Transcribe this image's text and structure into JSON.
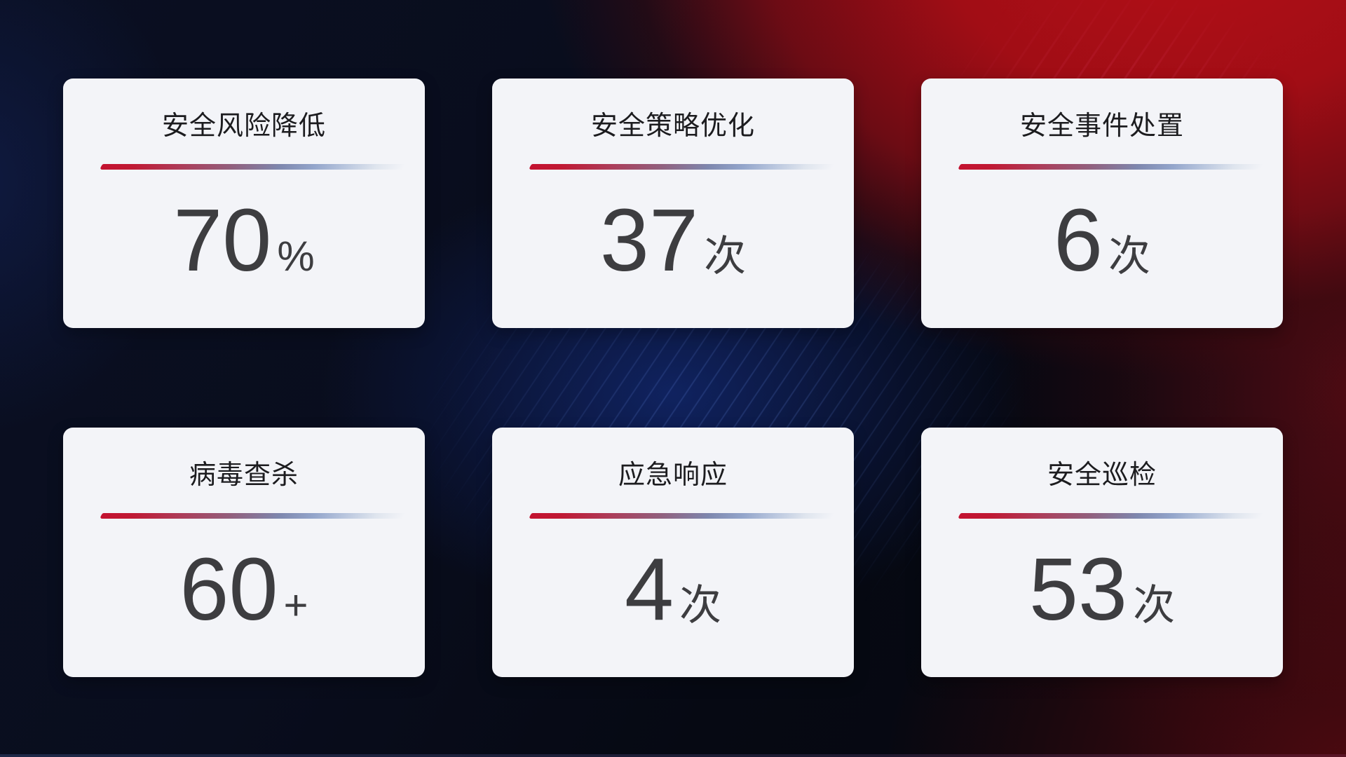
{
  "theme": {
    "card_background": "#f3f4f8",
    "title_color": "#1c1c1f",
    "value_color": "#3d3d40",
    "divider_gradient_start": "#c31230",
    "divider_gradient_mid": "#7e87ae",
    "divider_gradient_end": "#dfe5ee",
    "background_navy": "#0a0f22",
    "background_red": "#b30f17",
    "background_blue_glow": "#153184",
    "background_maroon": "#580a10"
  },
  "cards": [
    {
      "title": "安全风险降低",
      "value": "70",
      "unit": "%"
    },
    {
      "title": "安全策略优化",
      "value": "37",
      "unit": "次"
    },
    {
      "title": "安全事件处置",
      "value": "6",
      "unit": "次"
    },
    {
      "title": "病毒查杀",
      "value": "60",
      "unit": "+"
    },
    {
      "title": "应急响应",
      "value": "4",
      "unit": "次"
    },
    {
      "title": "安全巡检",
      "value": "53",
      "unit": "次"
    }
  ]
}
